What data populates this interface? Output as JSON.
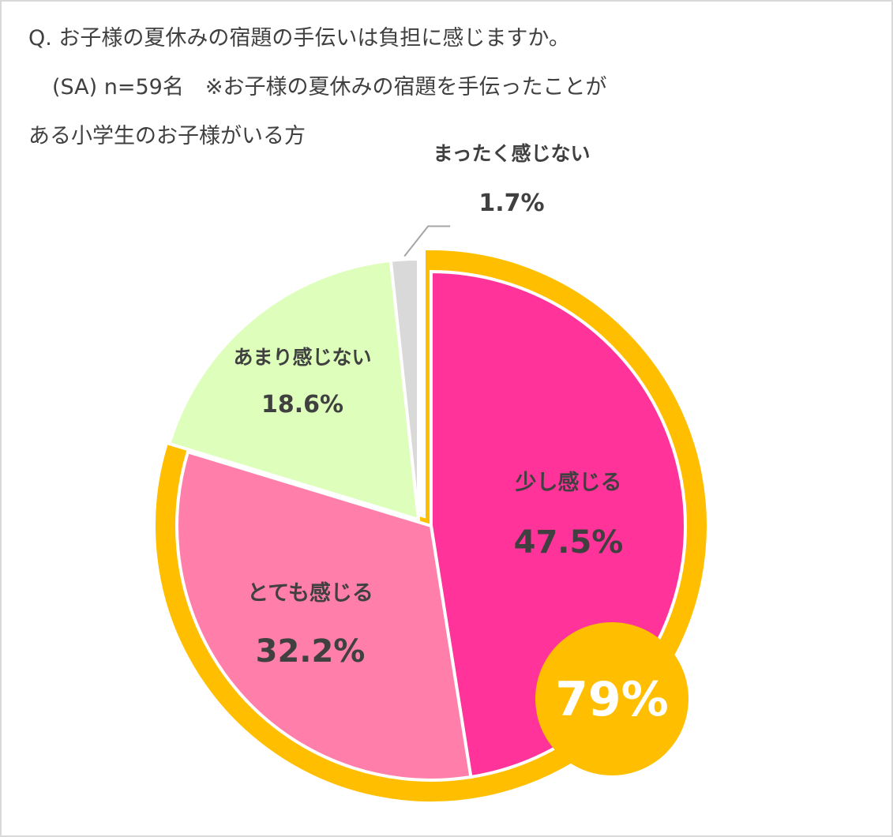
{
  "question": {
    "line1": "Q. お子様の夏休みの宿題の手伝いは負担に感じますか。",
    "line2": "(SA) n=59名　※お子様の夏休みの宿題を手伝ったことが",
    "line3": "ある小学生のお子様がいる方"
  },
  "chart_data": {
    "type": "pie",
    "n": 59,
    "slices": [
      {
        "label": "少し感じる",
        "value": 47.5,
        "value_label": "47.5%",
        "color": "#ff3399",
        "highlighted": true
      },
      {
        "label": "とても感じる",
        "value": 32.2,
        "value_label": "32.2%",
        "color": "#ff7faa",
        "highlighted": true
      },
      {
        "label": "あまり感じない",
        "value": 18.6,
        "value_label": "18.6%",
        "color": "#ddffbb",
        "highlighted": false
      },
      {
        "label": "まったく感じない",
        "value": 1.7,
        "value_label": "1.7%",
        "color": "#d9d9d9",
        "highlighted": false
      }
    ],
    "highlight": {
      "value": 79,
      "label": "79%",
      "color": "#ffbf00"
    }
  }
}
